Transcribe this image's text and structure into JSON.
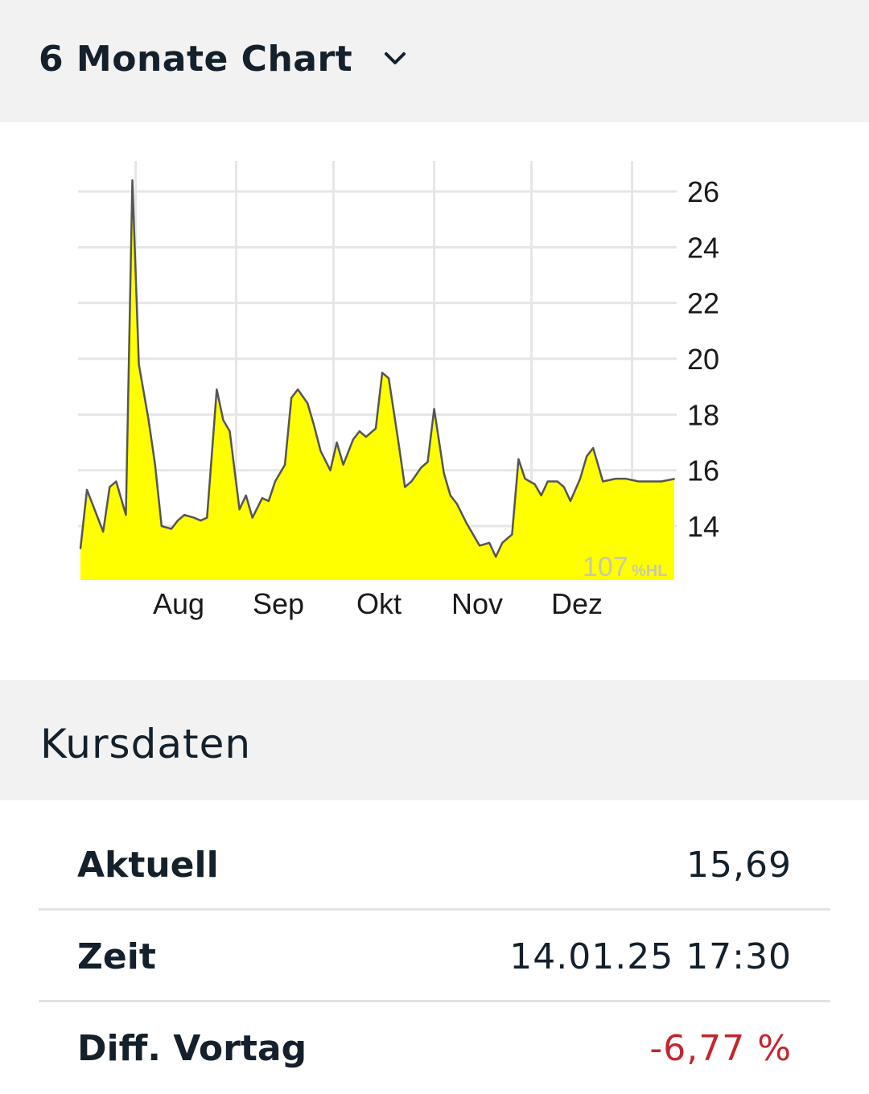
{
  "header": {
    "chart_selector_label": "6 Monate Chart",
    "chevron_icon": "chevron-down-icon"
  },
  "chart_data": {
    "type": "area",
    "y_ticks": [
      "26",
      "24",
      "22",
      "20",
      "18",
      "16",
      "14"
    ],
    "y_tick_values": [
      26,
      24,
      22,
      20,
      18,
      16,
      14
    ],
    "x_tick_labels": [
      "Aug",
      "Sep",
      "Okt",
      "Nov",
      "Dez"
    ],
    "ylim": [
      12,
      27
    ],
    "watermark": "107",
    "watermark_sub": "%HL",
    "fill_color": "#ffff00",
    "line_color": "#555555",
    "grid": true,
    "series": [
      {
        "x": [
          "2024-07-15",
          "2024-07-17",
          "2024-07-19",
          "2024-07-22",
          "2024-07-24",
          "2024-07-26",
          "2024-07-29",
          "2024-07-31",
          "2024-08-02",
          "2024-08-05",
          "2024-08-07",
          "2024-08-09",
          "2024-08-12",
          "2024-08-14",
          "2024-08-16",
          "2024-08-19",
          "2024-08-21",
          "2024-08-23",
          "2024-08-26",
          "2024-08-28",
          "2024-08-30",
          "2024-09-02",
          "2024-09-04",
          "2024-09-06",
          "2024-09-09",
          "2024-09-11",
          "2024-09-13",
          "2024-09-16",
          "2024-09-18",
          "2024-09-20",
          "2024-09-23",
          "2024-09-25",
          "2024-09-27",
          "2024-09-30",
          "2024-10-02",
          "2024-10-04",
          "2024-10-07",
          "2024-10-09",
          "2024-10-11",
          "2024-10-14",
          "2024-10-16",
          "2024-10-18",
          "2024-10-21",
          "2024-10-23",
          "2024-10-25",
          "2024-10-28",
          "2024-10-30",
          "2024-11-01",
          "2024-11-04",
          "2024-11-06",
          "2024-11-08",
          "2024-11-11",
          "2024-11-13",
          "2024-11-15",
          "2024-11-18",
          "2024-11-20",
          "2024-11-22",
          "2024-11-25",
          "2024-11-27",
          "2024-11-29",
          "2024-12-02",
          "2024-12-04",
          "2024-12-06",
          "2024-12-09",
          "2024-12-11",
          "2024-12-13",
          "2024-12-16",
          "2024-12-18",
          "2024-12-20",
          "2024-12-23",
          "2024-12-27",
          "2024-12-30",
          "2025-01-03",
          "2025-01-06",
          "2025-01-08",
          "2025-01-10",
          "2025-01-14"
        ],
        "y": [
          13.2,
          15.3,
          14.7,
          13.8,
          15.4,
          15.6,
          14.4,
          26.4,
          19.8,
          17.8,
          16.2,
          14.0,
          13.9,
          14.2,
          14.4,
          14.3,
          14.2,
          14.3,
          18.9,
          17.8,
          17.4,
          14.6,
          15.1,
          14.3,
          15.0,
          14.9,
          15.6,
          16.2,
          18.6,
          18.9,
          18.4,
          17.6,
          16.7,
          16.0,
          17.0,
          16.2,
          17.1,
          17.4,
          17.2,
          17.5,
          19.5,
          19.3,
          17.0,
          15.4,
          15.6,
          16.1,
          16.3,
          18.2,
          15.9,
          15.1,
          14.8,
          14.1,
          13.7,
          13.3,
          13.4,
          12.9,
          13.4,
          13.7,
          16.4,
          15.7,
          15.5,
          15.1,
          15.6,
          15.6,
          15.4,
          14.9,
          15.7,
          16.5,
          16.8,
          15.6,
          15.7,
          15.7,
          15.6,
          15.6,
          15.6,
          15.6,
          15.69
        ]
      }
    ]
  },
  "kursdaten": {
    "title": "Kursdaten",
    "rows": [
      {
        "label": "Aktuell",
        "value": "15,69",
        "value_color": "#14202b"
      },
      {
        "label": "Zeit",
        "value": "14.01.25 17:30",
        "value_color": "#14202b"
      },
      {
        "label": "Diff. Vortag",
        "value": "-6,77 %",
        "value_color": "#c4262e"
      }
    ]
  }
}
